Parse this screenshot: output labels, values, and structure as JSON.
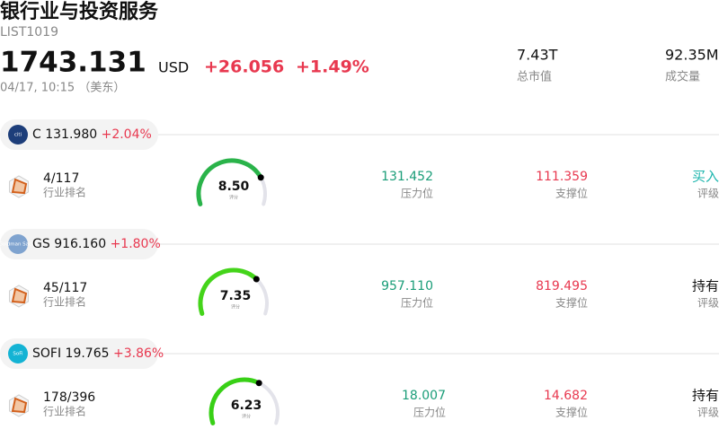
{
  "header": {
    "title": "银行业与投资服务",
    "code": "LIST1019",
    "price": "1743.131",
    "currency": "USD",
    "change": "+26.056",
    "change_pct": "+1.49%",
    "time": "04/17, 10:15 （美东）",
    "market_cap": "7.43T",
    "market_cap_label": "总市值",
    "volume": "92.35M",
    "volume_label": "成交量"
  },
  "stocks": [
    {
      "logo": "citi",
      "ticker": "C",
      "price": "131.980",
      "change_pct": "+2.04%",
      "rank": "4/117",
      "rank_label": "行业排名",
      "score": "8.50",
      "score_label": "评分",
      "resistance": "131.452",
      "resistance_label": "压力位",
      "support": "111.359",
      "support_label": "支撑位",
      "rating": "买入",
      "rating_label": "评级"
    },
    {
      "logo": "Goldman Sachs",
      "ticker": "GS",
      "price": "916.160",
      "change_pct": "+1.80%",
      "rank": "45/117",
      "rank_label": "行业排名",
      "score": "7.35",
      "score_label": "评分",
      "resistance": "957.110",
      "resistance_label": "压力位",
      "support": "819.495",
      "support_label": "支撑位",
      "rating": "持有",
      "rating_label": "评级"
    },
    {
      "logo": "SoFi",
      "ticker": "SOFI",
      "price": "19.765",
      "change_pct": "+3.86%",
      "rank": "178/396",
      "rank_label": "行业排名",
      "score": "6.23",
      "score_label": "评分",
      "resistance": "18.007",
      "resistance_label": "压力位",
      "support": "14.682",
      "support_label": "支撑位",
      "rating": "持有",
      "rating_label": "评级"
    }
  ]
}
